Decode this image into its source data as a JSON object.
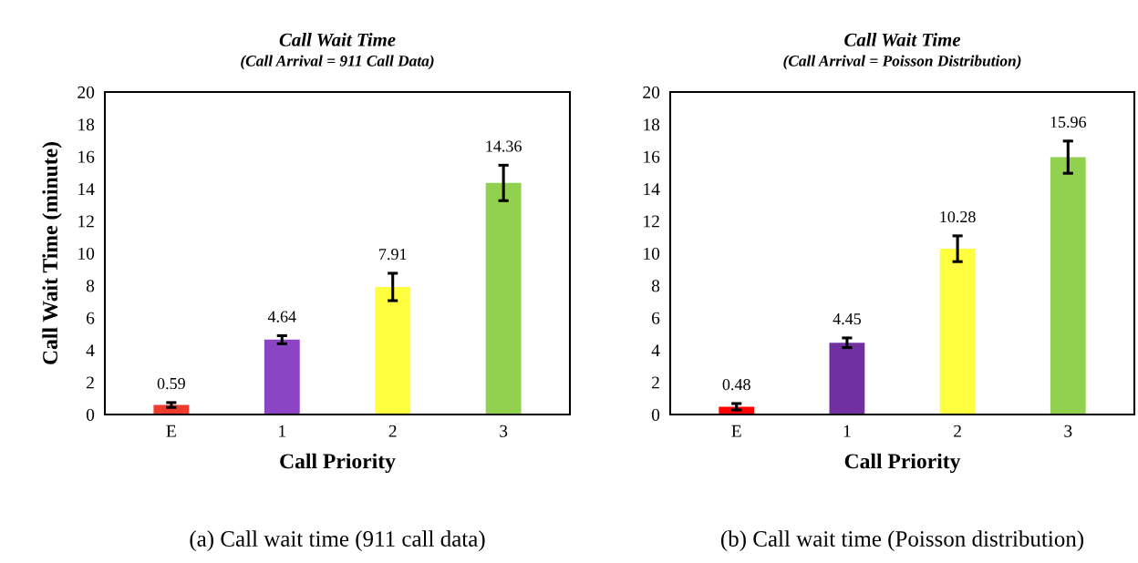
{
  "chart_data": [
    {
      "type": "bar",
      "title": "Call Wait Time",
      "subtitle": "(Call Arrival = 911 Call Data)",
      "xlabel": "Call Priority",
      "ylabel": "Call Wait Time (minute)",
      "categories": [
        "E",
        "1",
        "2",
        "3"
      ],
      "values": [
        0.59,
        4.64,
        7.91,
        14.36
      ],
      "colors": [
        "#ee3b2e",
        "#8b44c4",
        "#ffff40",
        "#92d050"
      ],
      "errors": [
        0.15,
        0.25,
        0.85,
        1.1
      ],
      "data_labels": true,
      "ylim": [
        0,
        20
      ],
      "yticks": [
        0,
        2,
        4,
        6,
        8,
        10,
        12,
        14,
        16,
        18,
        20
      ],
      "grid": false,
      "annotations": [
        "(a) Call wait time (911 call data)"
      ]
    },
    {
      "type": "bar",
      "title": "Call Wait Time",
      "subtitle": "(Call Arrival = Poisson Distribution)",
      "xlabel": "Call Priority",
      "categories": [
        "E",
        "1",
        "2",
        "3"
      ],
      "values": [
        0.48,
        4.45,
        10.28,
        15.96
      ],
      "colors": [
        "#ff0000",
        "#7030a0",
        "#ffff40",
        "#92d050"
      ],
      "errors": [
        0.2,
        0.3,
        0.8,
        1.0
      ],
      "data_labels": true,
      "ylim": [
        0,
        20
      ],
      "yticks": [
        0,
        2,
        4,
        6,
        8,
        10,
        12,
        14,
        16,
        18,
        20
      ],
      "grid": false,
      "annotations": [
        "(b) Call wait time (Poisson distribution)"
      ]
    }
  ]
}
